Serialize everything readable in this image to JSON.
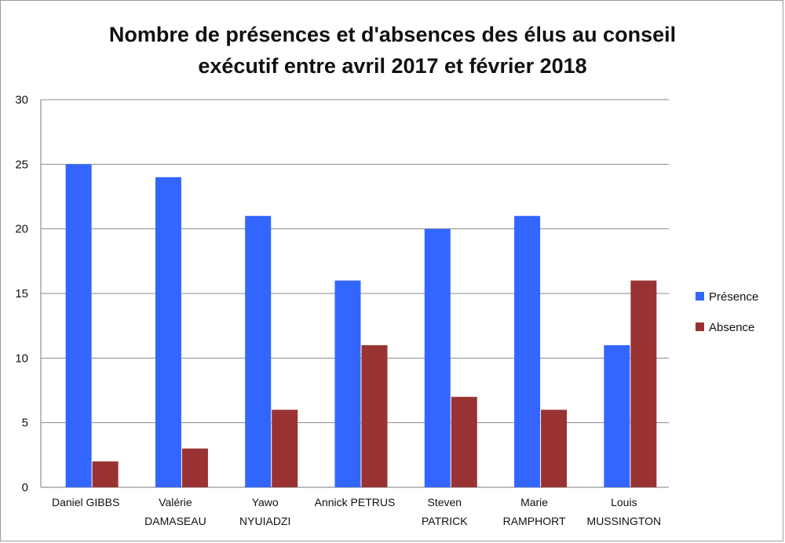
{
  "chart_data": {
    "type": "bar",
    "title_line1": "Nombre de présences et d'absences des élus au conseil",
    "title_line2": "exécutif entre avril 2017 et février 2018",
    "categories": [
      [
        "Daniel GIBBS"
      ],
      [
        "Valérie",
        "DAMASEAU"
      ],
      [
        "Yawo",
        "NYUIADZI"
      ],
      [
        "Annick PETRUS"
      ],
      [
        "Steven",
        "PATRICK"
      ],
      [
        "Marie",
        "RAMPHORT"
      ],
      [
        "Louis",
        "MUSSINGTON"
      ]
    ],
    "series": [
      {
        "name": "Présence",
        "color": "#3366ff",
        "values": [
          25,
          24,
          21,
          16,
          20,
          21,
          11
        ]
      },
      {
        "name": "Absence",
        "color": "#993333",
        "values": [
          2,
          3,
          6,
          11,
          7,
          6,
          16
        ]
      }
    ],
    "ylim": [
      0,
      30
    ],
    "yticks": [
      0,
      5,
      10,
      15,
      20,
      25,
      30
    ],
    "grid": true,
    "legend": "right",
    "xlabel": "",
    "ylabel": ""
  }
}
